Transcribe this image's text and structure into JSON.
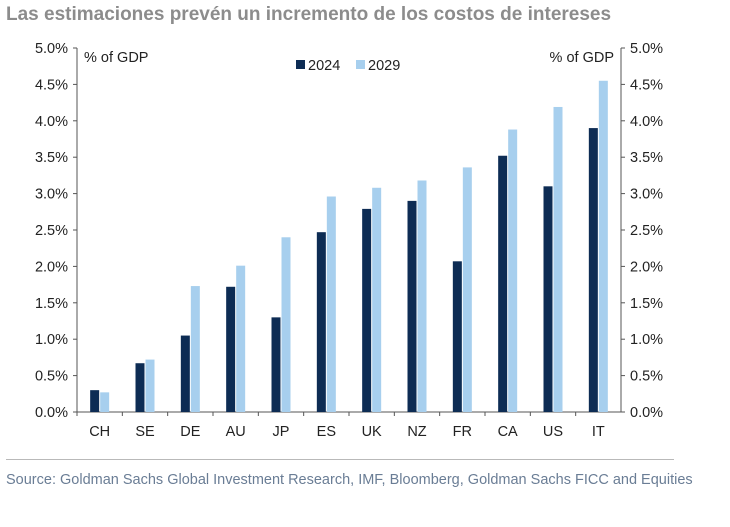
{
  "title": "Las estimaciones prevén un incremento de los costos de intereses",
  "source": "Source: Goldman Sachs Global Investment Research, IMF, Bloomberg, Goldman Sachs FICC and Equities",
  "chart_data": {
    "type": "bar",
    "categories": [
      "CH",
      "SE",
      "DE",
      "AU",
      "JP",
      "ES",
      "UK",
      "NZ",
      "FR",
      "CA",
      "US",
      "IT"
    ],
    "series": [
      {
        "name": "2024",
        "color": "#0d2c54",
        "values": [
          0.3,
          0.67,
          1.05,
          1.72,
          1.3,
          2.47,
          2.79,
          2.9,
          2.07,
          3.52,
          3.1,
          3.9
        ]
      },
      {
        "name": "2029",
        "color": "#a7cfee",
        "values": [
          0.27,
          0.72,
          1.73,
          2.01,
          2.4,
          2.96,
          3.08,
          3.18,
          3.36,
          3.88,
          4.19,
          4.55
        ]
      }
    ],
    "ylabel_left": "% of GDP",
    "ylabel_right": "% of GDP",
    "ylim": [
      0,
      5
    ],
    "yticks": [
      "0.0%",
      "0.5%",
      "1.0%",
      "1.5%",
      "2.0%",
      "2.5%",
      "3.0%",
      "3.5%",
      "4.0%",
      "4.5%",
      "5.0%"
    ],
    "legend_position": "top-center"
  }
}
